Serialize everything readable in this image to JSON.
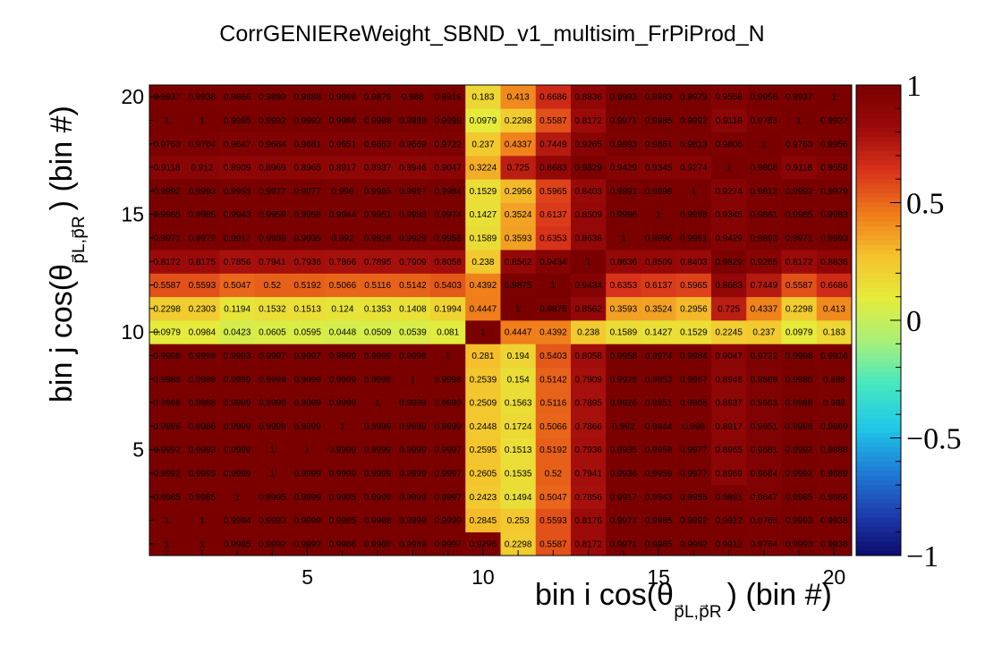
{
  "chart_data": {
    "type": "heatmap",
    "title": "CorrGENIEReWeight_SBND_v1_multisim_FrPiProd_N",
    "xlabel": {
      "main": "bin i cos(θ",
      "sub": "p⃗L,p⃗R",
      "close": ") (bin #)"
    },
    "ylabel": {
      "main": "bin j cos(θ",
      "sub": "p⃗L,p⃗R",
      "close": ") (bin #)"
    },
    "x_range": [
      0.5,
      20.5
    ],
    "y_range": [
      0.5,
      20.5
    ],
    "x_ticks": [
      5,
      10,
      15,
      20
    ],
    "y_ticks": [
      5,
      10,
      15,
      20
    ],
    "z_range": [
      -1,
      1
    ],
    "z_ticks": [
      {
        "value": 1,
        "label": "1"
      },
      {
        "value": 0.5,
        "label": "0.5"
      },
      {
        "value": 0,
        "label": "0"
      },
      {
        "value": -0.5,
        "label": "−0.5"
      },
      {
        "value": -1,
        "label": "−1"
      }
    ],
    "colormap": [
      "#0b0b6e",
      "#1f3fb0",
      "#1e7fd8",
      "#20c8e8",
      "#45e8c0",
      "#a8f07a",
      "#e4ec3c",
      "#f5c22c",
      "#ef7a1a",
      "#d8321a",
      "#9c0a0a",
      "#7a0000"
    ],
    "rows": [
      {
        "y": 1,
        "values": [
          1,
          1,
          0.9985,
          0.9992,
          0.9992,
          0.9986,
          0.9988,
          0.9989,
          0.9997,
          0.9796,
          0.2298,
          0.5587,
          0.8172,
          0.9971,
          0.9985,
          0.9992,
          0.9912,
          0.9764,
          0.9993,
          0.9938
        ]
      },
      {
        "y": 2,
        "values": [
          1,
          1,
          0.9984,
          0.9993,
          0.9999,
          0.9985,
          0.9988,
          0.9999,
          0.9999,
          0.2845,
          0.253,
          0.5593,
          0.8176,
          0.9971,
          0.9985,
          0.9992,
          0.9912,
          0.9765,
          0.9993,
          0.9938
        ]
      },
      {
        "y": 3,
        "values": [
          0.9985,
          0.9985,
          1,
          0.9995,
          0.9999,
          0.9995,
          0.9999,
          0.9999,
          0.9997,
          0.2423,
          0.1494,
          0.5047,
          0.7856,
          0.9917,
          0.9943,
          0.9955,
          0.9891,
          0.9647,
          0.9985,
          0.9866
        ]
      },
      {
        "y": 4,
        "values": [
          0.9992,
          0.9993,
          0.9999,
          1,
          0.9999,
          0.9999,
          0.9999,
          0.9999,
          0.9997,
          0.2605,
          0.1535,
          0.52,
          0.7941,
          0.9936,
          0.9959,
          0.9977,
          0.8969,
          0.9684,
          0.9992,
          0.9889
        ]
      },
      {
        "y": 5,
        "values": [
          0.9992,
          0.9993,
          0.9999,
          1,
          1,
          0.9999,
          0.9999,
          0.9999,
          0.9997,
          0.2595,
          0.1513,
          0.5192,
          0.7936,
          0.9935,
          0.9958,
          0.9977,
          0.8965,
          0.9681,
          0.9992,
          0.9888
        ]
      },
      {
        "y": 6,
        "values": [
          0.9986,
          0.9986,
          0.9999,
          0.9999,
          0.9999,
          1,
          0.9999,
          0.9999,
          0.9999,
          0.2448,
          0.1724,
          0.5066,
          0.7866,
          0.992,
          0.9944,
          0.996,
          0.8917,
          0.9651,
          0.9986,
          0.9869
        ]
      },
      {
        "y": 7,
        "values": [
          0.9988,
          0.9988,
          0.9999,
          0.9999,
          0.9999,
          0.9999,
          1,
          0.9999,
          0.9999,
          0.2509,
          0.1563,
          0.5116,
          0.7895,
          0.9926,
          0.9951,
          0.9965,
          0.8937,
          0.9663,
          0.9988,
          0.988
        ]
      },
      {
        "y": 8,
        "values": [
          0.9989,
          0.9989,
          0.9999,
          0.9999,
          0.9999,
          0.9999,
          0.9999,
          1,
          0.9998,
          0.2539,
          0.154,
          0.5142,
          0.7909,
          0.9929,
          0.9953,
          0.9967,
          0.8946,
          0.9669,
          0.9989,
          0.988
        ]
      },
      {
        "y": 9,
        "values": [
          0.9998,
          0.9998,
          0.9993,
          0.9997,
          0.9997,
          0.9999,
          0.9999,
          0.9998,
          1,
          0.281,
          0.194,
          0.5403,
          0.8058,
          0.9958,
          0.9974,
          0.9984,
          0.9047,
          0.9722,
          0.9998,
          0.9916
        ]
      },
      {
        "y": 10,
        "values": [
          0.0979,
          0.0984,
          0.0423,
          0.0605,
          0.0595,
          0.0448,
          0.0509,
          0.0539,
          0.081,
          1,
          0.4447,
          0.4392,
          0.238,
          0.1589,
          0.1427,
          0.1529,
          0.2245,
          0.237,
          0.0979,
          0.183
        ]
      },
      {
        "y": 11,
        "values": [
          0.2298,
          0.2303,
          0.1194,
          0.1532,
          0.1513,
          0.124,
          0.1353,
          0.1408,
          0.1994,
          0.4447,
          1,
          0.9875,
          0.8562,
          0.3593,
          0.3524,
          0.2956,
          0.725,
          0.4337,
          0.2298,
          0.413
        ]
      },
      {
        "y": 12,
        "values": [
          0.5587,
          0.5593,
          0.5047,
          0.52,
          0.5192,
          0.5066,
          0.5116,
          0.5142,
          0.5403,
          0.4392,
          0.9875,
          1,
          0.9434,
          0.6353,
          0.6137,
          0.5965,
          0.8683,
          0.7449,
          0.5587,
          0.6686
        ]
      },
      {
        "y": 13,
        "values": [
          0.8172,
          0.8175,
          0.7856,
          0.7941,
          0.7936,
          0.7866,
          0.7895,
          0.7909,
          0.8058,
          0.238,
          0.8562,
          0.9434,
          1,
          0.8636,
          0.8509,
          0.8403,
          0.9829,
          0.9265,
          0.8172,
          0.8836
        ]
      },
      {
        "y": 14,
        "values": [
          0.9971,
          0.9972,
          0.9917,
          0.9936,
          0.9935,
          0.992,
          0.9926,
          0.9929,
          0.9958,
          0.1589,
          0.3593,
          0.6353,
          0.8636,
          1,
          0.9996,
          0.9991,
          0.9429,
          0.9893,
          0.9971,
          0.9993
        ]
      },
      {
        "y": 15,
        "values": [
          0.9985,
          0.9985,
          0.9943,
          0.9959,
          0.9958,
          0.9944,
          0.9951,
          0.9953,
          0.9974,
          0.1427,
          0.3524,
          0.6137,
          0.8509,
          0.9996,
          1,
          0.9998,
          0.9345,
          0.9861,
          0.9985,
          0.9983
        ]
      },
      {
        "y": 16,
        "values": [
          0.9992,
          0.9993,
          0.9955,
          0.9977,
          0.9977,
          0.996,
          0.9965,
          0.9967,
          0.9984,
          0.1529,
          0.2956,
          0.5965,
          0.8403,
          0.9991,
          0.9998,
          1,
          0.9274,
          0.9813,
          0.9992,
          0.9979
        ]
      },
      {
        "y": 17,
        "values": [
          0.9118,
          0.912,
          0.8909,
          0.8969,
          0.8965,
          0.8917,
          0.8937,
          0.8946,
          0.9047,
          0.3224,
          0.725,
          0.8683,
          0.9829,
          0.9429,
          0.9345,
          0.9274,
          1,
          0.9806,
          0.9118,
          0.9558
        ]
      },
      {
        "y": 18,
        "values": [
          0.9763,
          0.9764,
          0.9647,
          0.9684,
          0.9681,
          0.9651,
          0.9663,
          0.9669,
          0.9722,
          0.237,
          0.4337,
          0.7449,
          0.9265,
          0.9893,
          0.9861,
          0.9813,
          0.9806,
          1,
          0.9763,
          0.9956
        ]
      },
      {
        "y": 19,
        "values": [
          1,
          1,
          0.9985,
          0.9992,
          0.9992,
          0.9986,
          0.9988,
          0.9989,
          0.9998,
          0.0979,
          0.2298,
          0.5587,
          0.8172,
          0.9971,
          0.9985,
          0.9992,
          0.9118,
          0.9763,
          1,
          0.9937
        ]
      },
      {
        "y": 20,
        "values": [
          0.9937,
          0.9938,
          0.9866,
          0.9889,
          0.9888,
          0.9869,
          0.9876,
          0.988,
          0.9916,
          0.183,
          0.413,
          0.6686,
          0.8836,
          0.9993,
          0.9983,
          0.9979,
          0.9558,
          0.9956,
          0.9937,
          1
        ]
      }
    ]
  }
}
